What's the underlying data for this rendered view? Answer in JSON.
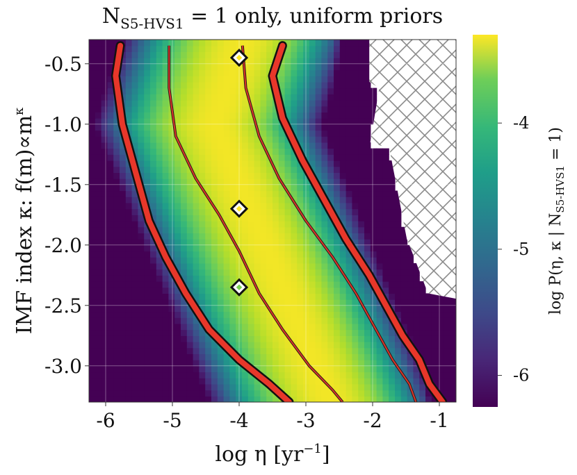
{
  "chart_data": {
    "type": "heatmap",
    "title_main": "N",
    "title_sub": "S5-HVS1",
    "title_rest": " = 1 only, uniform priors",
    "xlabel_main": "log η [yr",
    "xlabel_sup": "−1",
    "xlabel_end": "]",
    "ylabel_main": "IMF index κ: f(m)∝m",
    "ylabel_sup": "κ",
    "xlim": [
      -6.25,
      -0.75
    ],
    "ylim": [
      -3.3,
      -0.3
    ],
    "xticks": [
      -6,
      -5,
      -4,
      -3,
      -2,
      -1
    ],
    "xtick_labels": [
      "-6",
      "-5",
      "-4",
      "-3",
      "-2",
      "-1"
    ],
    "yticks": [
      -0.5,
      -1.0,
      -1.5,
      -2.0,
      -2.5,
      -3.0
    ],
    "ytick_labels": [
      "-0.5",
      "-1.0",
      "-1.5",
      "-2.0",
      "-2.5",
      "-3.0"
    ],
    "grid": true,
    "hatched_region": "excluded region, upper right",
    "colorbar": {
      "label_main": "log P(η, κ | N",
      "label_sub": "S5-HVS1",
      "label_end": " = 1)",
      "ticks": [
        -4,
        -5,
        -6
      ],
      "tick_labels": [
        "-4",
        "-5",
        "-6"
      ],
      "range": [
        -6.25,
        -3.3
      ],
      "colormap": "viridis"
    },
    "markers": [
      {
        "x": -4.0,
        "y": -0.45,
        "fill": "#fde725"
      },
      {
        "x": -4.0,
        "y": -1.7,
        "fill": "#fde725"
      },
      {
        "x": -4.0,
        "y": -2.35,
        "fill": "#7ad151"
      }
    ],
    "contours": [
      {
        "level": "outer",
        "side": "left",
        "style": "thick-red",
        "points": [
          [
            -5.78,
            -0.35
          ],
          [
            -5.85,
            -0.6
          ],
          [
            -5.75,
            -1.0
          ],
          [
            -5.55,
            -1.4
          ],
          [
            -5.35,
            -1.8
          ],
          [
            -5.1,
            -2.1
          ],
          [
            -4.8,
            -2.4
          ],
          [
            -4.45,
            -2.7
          ],
          [
            -4.0,
            -2.95
          ],
          [
            -3.55,
            -3.15
          ],
          [
            -3.25,
            -3.3
          ]
        ]
      },
      {
        "level": "inner",
        "side": "left",
        "style": "thin-red",
        "points": [
          [
            -5.05,
            -0.35
          ],
          [
            -5.05,
            -0.7
          ],
          [
            -4.95,
            -1.1
          ],
          [
            -4.65,
            -1.45
          ],
          [
            -4.3,
            -1.75
          ],
          [
            -4.0,
            -2.05
          ],
          [
            -3.7,
            -2.4
          ],
          [
            -3.35,
            -2.7
          ],
          [
            -2.95,
            -3.0
          ],
          [
            -2.6,
            -3.2
          ],
          [
            -2.45,
            -3.3
          ]
        ]
      },
      {
        "level": "inner",
        "side": "right",
        "style": "thin-red",
        "points": [
          [
            -3.95,
            -0.35
          ],
          [
            -3.9,
            -0.7
          ],
          [
            -3.7,
            -1.1
          ],
          [
            -3.4,
            -1.45
          ],
          [
            -3.0,
            -1.8
          ],
          [
            -2.6,
            -2.1
          ],
          [
            -2.25,
            -2.4
          ],
          [
            -1.95,
            -2.7
          ],
          [
            -1.7,
            -2.95
          ],
          [
            -1.45,
            -3.15
          ],
          [
            -1.35,
            -3.3
          ]
        ]
      },
      {
        "level": "outer",
        "side": "right",
        "style": "thick-red",
        "points": [
          [
            -3.35,
            -0.35
          ],
          [
            -3.5,
            -0.6
          ],
          [
            -3.35,
            -0.95
          ],
          [
            -3.05,
            -1.3
          ],
          [
            -2.75,
            -1.6
          ],
          [
            -2.4,
            -1.95
          ],
          [
            -2.05,
            -2.25
          ],
          [
            -1.75,
            -2.55
          ],
          [
            -1.55,
            -2.75
          ],
          [
            -1.3,
            -2.95
          ],
          [
            -1.15,
            -3.15
          ],
          [
            -0.95,
            -3.3
          ]
        ]
      }
    ]
  }
}
